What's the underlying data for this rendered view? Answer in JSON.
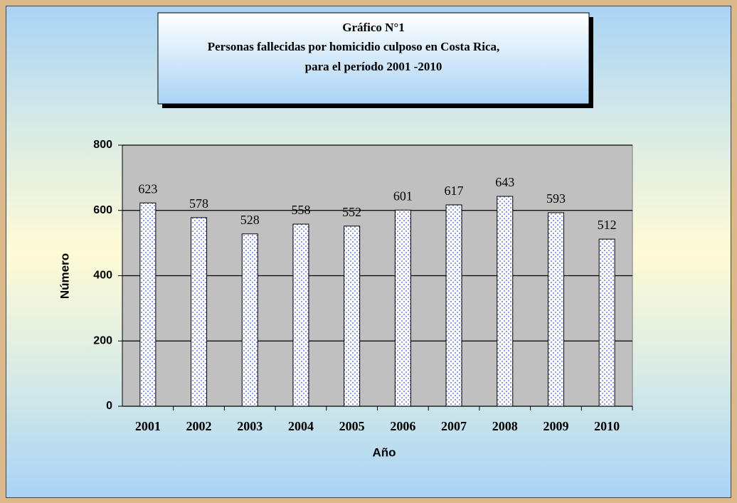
{
  "chart_data": {
    "type": "bar",
    "title": [
      "Gráfico N°1",
      "Personas fallecidas por homicidio culposo en Costa Rica,",
      "para el período 2001 -2010"
    ],
    "categories": [
      "2001",
      "2002",
      "2003",
      "2004",
      "2005",
      "2006",
      "2007",
      "2008",
      "2009",
      "2010"
    ],
    "values": [
      623,
      578,
      528,
      558,
      552,
      601,
      617,
      643,
      593,
      512
    ],
    "color": "#8f9fe8",
    "xlabel": "Año",
    "ylabel": "Número",
    "ylim": [
      0,
      800
    ],
    "yticks": [
      0,
      200,
      400,
      600,
      800
    ],
    "grid": true
  }
}
